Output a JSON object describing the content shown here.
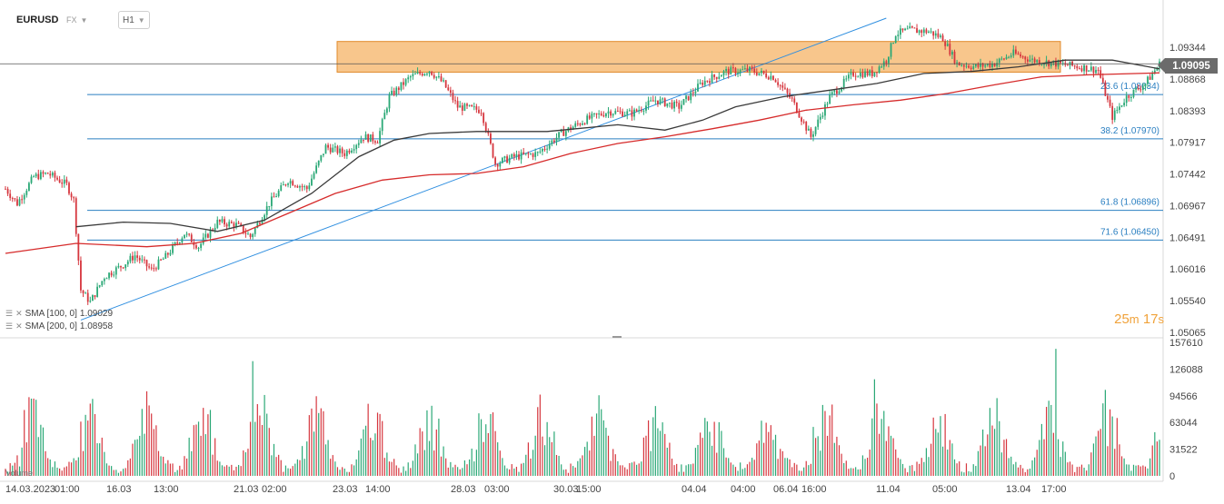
{
  "header": {
    "symbol": "EURUSD",
    "market": "FX",
    "timeframe": "H1"
  },
  "indicators": [
    {
      "label": "SMA [100, 0]",
      "value": "1.09029",
      "color": "#3a3a3a"
    },
    {
      "label": "SMA [200, 0]",
      "value": "1.08958",
      "color": "#d62b2b"
    }
  ],
  "volume_label": "Volume",
  "current_price": "1.09095",
  "countdown": {
    "minutes": "25",
    "min_unit": "m",
    "seconds": "17",
    "sec_unit": "s"
  },
  "colors": {
    "up": "#2aa876",
    "down": "#d6363e",
    "sma100": "#3a3a3a",
    "sma200": "#d62b2b",
    "fib": "#2a7fc1",
    "trend": "#2f8fe0",
    "zone": "#f5a74f"
  },
  "chart_data": {
    "type": "candlestick",
    "price_axis": {
      "ticks": [
        "1.09344",
        "1.08868",
        "1.08393",
        "1.07917",
        "1.07442",
        "1.06967",
        "1.06491",
        "1.06016",
        "1.05540",
        "1.05065"
      ]
    },
    "volume_axis": {
      "ticks": [
        "157610",
        "126088",
        "94566",
        "63044",
        "31522",
        "0"
      ]
    },
    "time_axis": {
      "labels": [
        "14.03.2023",
        "01:00",
        "16.03",
        "13:00",
        "21.03",
        "02:00",
        "23.03",
        "14:00",
        "28.03",
        "03:00",
        "30.03",
        "15:00",
        "04.04",
        "04:00",
        "06.04",
        "16:00",
        "11.04",
        "05:00",
        "13.04",
        "17:00"
      ]
    },
    "fibonacci": [
      {
        "label": "23.6 (1.08634)",
        "level": 1.08634
      },
      {
        "label": "38.2 (1.07970)",
        "level": 1.0797
      },
      {
        "label": "61.8 (1.06896)",
        "level": 1.06896
      },
      {
        "label": "71.6 (1.06450)",
        "level": 1.0645
      }
    ],
    "resistance_zone": {
      "low": 1.0897,
      "high": 1.0943
    },
    "last_price": 1.09095,
    "close_path": [
      [
        0,
        1.0722
      ],
      [
        5,
        1.07
      ],
      [
        12,
        1.074
      ],
      [
        18,
        1.0745
      ],
      [
        26,
        1.0728
      ],
      [
        29,
        1.0705
      ],
      [
        32,
        1.057
      ],
      [
        36,
        1.0552
      ],
      [
        42,
        1.059
      ],
      [
        50,
        1.0608
      ],
      [
        55,
        1.0622
      ],
      [
        62,
        1.06
      ],
      [
        68,
        1.062
      ],
      [
        76,
        1.0655
      ],
      [
        82,
        1.0635
      ],
      [
        90,
        1.0672
      ],
      [
        98,
        1.0668
      ],
      [
        104,
        1.065
      ],
      [
        112,
        1.07
      ],
      [
        120,
        1.0735
      ],
      [
        128,
        1.0722
      ],
      [
        136,
        1.0785
      ],
      [
        144,
        1.0775
      ],
      [
        152,
        1.08
      ],
      [
        158,
        1.0795
      ],
      [
        163,
        1.086
      ],
      [
        172,
        1.089
      ],
      [
        180,
        1.09
      ],
      [
        186,
        1.088
      ],
      [
        192,
        1.0845
      ],
      [
        202,
        1.084
      ],
      [
        208,
        1.076
      ],
      [
        216,
        1.077
      ],
      [
        226,
        1.0775
      ],
      [
        236,
        1.0805
      ],
      [
        246,
        1.0825
      ],
      [
        256,
        1.0838
      ],
      [
        266,
        1.0835
      ],
      [
        276,
        1.0855
      ],
      [
        286,
        1.0845
      ],
      [
        296,
        1.0882
      ],
      [
        306,
        1.0898
      ],
      [
        316,
        1.09
      ],
      [
        326,
        1.089
      ],
      [
        334,
        1.0855
      ],
      [
        342,
        1.08
      ],
      [
        350,
        1.086
      ],
      [
        360,
        1.0895
      ],
      [
        368,
        1.0895
      ],
      [
        374,
        1.0915
      ],
      [
        378,
        1.0955
      ],
      [
        384,
        1.096
      ],
      [
        392,
        1.0958
      ],
      [
        398,
        1.0948
      ],
      [
        404,
        1.091
      ],
      [
        412,
        1.0905
      ],
      [
        420,
        1.091
      ],
      [
        428,
        1.0925
      ],
      [
        436,
        1.0915
      ],
      [
        446,
        1.091
      ],
      [
        456,
        1.0905
      ],
      [
        464,
        1.09
      ],
      [
        470,
        1.083
      ],
      [
        476,
        1.086
      ],
      [
        484,
        1.088
      ],
      [
        490,
        1.0909
      ]
    ],
    "sma100": [
      [
        30,
        1.0665
      ],
      [
        50,
        1.0672
      ],
      [
        70,
        1.067
      ],
      [
        90,
        1.0658
      ],
      [
        110,
        1.0675
      ],
      [
        130,
        1.0715
      ],
      [
        150,
        1.077
      ],
      [
        165,
        1.0795
      ],
      [
        180,
        1.0805
      ],
      [
        200,
        1.0808
      ],
      [
        230,
        1.0808
      ],
      [
        260,
        1.0818
      ],
      [
        280,
        1.081
      ],
      [
        296,
        1.0825
      ],
      [
        310,
        1.0845
      ],
      [
        330,
        1.086
      ],
      [
        350,
        1.087
      ],
      [
        370,
        1.088
      ],
      [
        390,
        1.0895
      ],
      [
        410,
        1.0898
      ],
      [
        430,
        1.0905
      ],
      [
        450,
        1.0915
      ],
      [
        470,
        1.0915
      ],
      [
        490,
        1.0902
      ]
    ],
    "sma200": [
      [
        0,
        1.0625
      ],
      [
        30,
        1.064
      ],
      [
        60,
        1.0635
      ],
      [
        80,
        1.064
      ],
      [
        100,
        1.0655
      ],
      [
        120,
        1.0685
      ],
      [
        140,
        1.0715
      ],
      [
        160,
        1.0735
      ],
      [
        180,
        1.0743
      ],
      [
        200,
        1.0745
      ],
      [
        220,
        1.0755
      ],
      [
        240,
        1.0775
      ],
      [
        260,
        1.079
      ],
      [
        280,
        1.08
      ],
      [
        300,
        1.0812
      ],
      [
        320,
        1.0825
      ],
      [
        340,
        1.084
      ],
      [
        360,
        1.0848
      ],
      [
        380,
        1.0855
      ],
      [
        400,
        1.0865
      ],
      [
        420,
        1.0878
      ],
      [
        440,
        1.089
      ],
      [
        460,
        1.0893
      ],
      [
        490,
        1.0896
      ]
    ],
    "trendline": {
      "from": [
        32,
        1.0525
      ],
      "to": [
        374,
        1.0978
      ]
    }
  }
}
